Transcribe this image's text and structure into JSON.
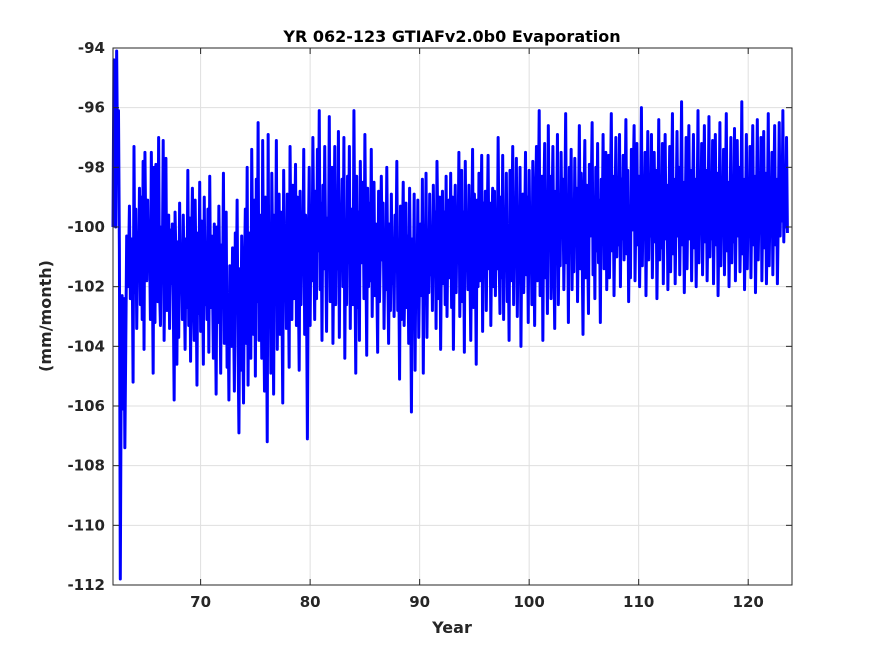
{
  "chart_data": {
    "type": "line",
    "title": "YR 062-123 GTIAFv2.0b0 Evaporation",
    "xlabel": "Year",
    "ylabel": "(mm/month)",
    "xlim": [
      62,
      124
    ],
    "ylim": [
      -112,
      -94
    ],
    "xticks": [
      70,
      80,
      90,
      100,
      110,
      120
    ],
    "yticks": [
      -112,
      -110,
      -108,
      -106,
      -104,
      -102,
      -100,
      -98,
      -96,
      -94
    ],
    "grid": true,
    "legend": "none",
    "series": [
      {
        "color": "#0000ff",
        "x_start": 62.0,
        "x_step": 0.083333,
        "values": [
          -100.0,
          -94.4,
          -95.3,
          -100.0,
          -94.1,
          -97.8,
          -96.1,
          -100.7,
          -111.8,
          -104.8,
          -102.3,
          -106.1,
          -102.4,
          -107.4,
          -103.9,
          -100.3,
          -102.0,
          -101.3,
          -99.3,
          -102.4,
          -100.4,
          -101.0,
          -105.2,
          -97.3,
          -102.2,
          -99.4,
          -103.4,
          -100.4,
          -101.6,
          -98.7,
          -102.6,
          -99.0,
          -103.1,
          -97.8,
          -104.1,
          -97.5,
          -100.5,
          -101.8,
          -99.1,
          -101.3,
          -100.5,
          -103.1,
          -97.5,
          -101.1,
          -104.9,
          -98.0,
          -103.2,
          -97.9,
          -100.1,
          -102.5,
          -97.0,
          -102.1,
          -103.3,
          -100.0,
          -101.7,
          -97.1,
          -103.8,
          -100.9,
          -97.7,
          -102.8,
          -101.2,
          -99.6,
          -103.4,
          -100.1,
          -101.9,
          -99.9,
          -102.3,
          -105.8,
          -99.5,
          -101.1,
          -104.6,
          -100.5,
          -103.7,
          -99.2,
          -102.2,
          -100.8,
          -103.1,
          -99.6,
          -101.8,
          -104.1,
          -100.4,
          -102.7,
          -98.1,
          -103.3,
          -99.7,
          -104.5,
          -100.8,
          -98.7,
          -102.0,
          -103.8,
          -99.1,
          -101.6,
          -105.3,
          -100.2,
          -102.9,
          -98.5,
          -103.5,
          -99.8,
          -101.4,
          -104.6,
          -99.0,
          -102.6,
          -100.7,
          -103.1,
          -99.4,
          -104.2,
          -98.3,
          -102.7,
          -100.3,
          -101.9,
          -104.4,
          -99.9,
          -102.1,
          -105.6,
          -100.0,
          -103.2,
          -99.3,
          -101.7,
          -104.9,
          -100.6,
          -102.5,
          -98.2,
          -103.9,
          -101.1,
          -99.5,
          -104.7,
          -102.4,
          -105.8,
          -101.3,
          -103.7,
          -104.0,
          -100.7,
          -102.6,
          -105.5,
          -100.2,
          -102.8,
          -99.1,
          -104.0,
          -106.9,
          -101.4,
          -104.8,
          -100.3,
          -103.1,
          -105.9,
          -101.6,
          -99.4,
          -103.9,
          -98.0,
          -105.3,
          -100.2,
          -102.2,
          -104.4,
          -97.4,
          -100.9,
          -103.6,
          -99.1,
          -105.0,
          -98.4,
          -102.5,
          -96.5,
          -103.8,
          -99.6,
          -100.9,
          -104.4,
          -97.1,
          -102.0,
          -105.5,
          -99.0,
          -101.5,
          -107.2,
          -96.9,
          -103.2,
          -100.4,
          -104.9,
          -98.2,
          -101.1,
          -105.6,
          -99.6,
          -102.1,
          -97.1,
          -104.1,
          -100.3,
          -98.9,
          -103.6,
          -99.5,
          -102.1,
          -105.9,
          -98.1,
          -101.7,
          -100.1,
          -103.4,
          -98.9,
          -101.3,
          -104.7,
          -97.3,
          -100.7,
          -103.1,
          -98.6,
          -102.4,
          -100.3,
          -97.9,
          -103.3,
          -99.0,
          -101.6,
          -104.8,
          -98.8,
          -102.6,
          -100.1,
          -101.4,
          -97.4,
          -103.6,
          -99.6,
          -102.0,
          -107.1,
          -100.6,
          -98.0,
          -103.3,
          -99.7,
          -101.8,
          -97.0,
          -100.3,
          -103.1,
          -98.8,
          -102.4,
          -97.4,
          -100.8,
          -96.1,
          -102.1,
          -99.2,
          -103.8,
          -98.6,
          -101.4,
          -97.3,
          -100.6,
          -103.5,
          -99.7,
          -101.1,
          -96.3,
          -102.5,
          -99.2,
          -98.0,
          -103.9,
          -100.4,
          -97.3,
          -102.6,
          -99.1,
          -101.4,
          -96.8,
          -103.7,
          -99.8,
          -100.6,
          -98.4,
          -102.0,
          -97.0,
          -104.4,
          -99.9,
          -102.6,
          -98.3,
          -101.2,
          -97.3,
          -103.4,
          -99.4,
          -100.9,
          -102.6,
          -96.1,
          -101.0,
          -104.9,
          -98.3,
          -102.7,
          -99.5,
          -103.8,
          -97.8,
          -101.2,
          -100.3,
          -98.5,
          -102.4,
          -96.9,
          -100.6,
          -104.3,
          -98.7,
          -102.0,
          -99.2,
          -101.8,
          -97.4,
          -103.0,
          -100.1,
          -98.5,
          -102.3,
          -99.9,
          -101.6,
          -104.2,
          -98.8,
          -102.5,
          -100.6,
          -98.3,
          -101.1,
          -99.2,
          -103.4,
          -100.6,
          -102.1,
          -98.0,
          -101.3,
          -103.9,
          -99.9,
          -102.8,
          -98.9,
          -101.9,
          -100.5,
          -103.0,
          -99.6,
          -101.2,
          -97.8,
          -102.8,
          -101.0,
          -105.1,
          -99.3,
          -103.1,
          -100.9,
          -98.5,
          -103.3,
          -101.4,
          -99.2,
          -102.7,
          -100.3,
          -103.9,
          -98.7,
          -101.6,
          -106.2,
          -100.4,
          -102.8,
          -98.9,
          -104.8,
          -100.6,
          -102.5,
          -99.1,
          -103.7,
          -101.3,
          -99.9,
          -102.3,
          -98.4,
          -104.9,
          -100.3,
          -101.8,
          -98.2,
          -103.7,
          -100.1,
          -102.2,
          -98.9,
          -101.6,
          -100.0,
          -102.8,
          -98.6,
          -101.5,
          -99.5,
          -103.4,
          -97.8,
          -100.2,
          -102.4,
          -99.0,
          -104.1,
          -100.4,
          -98.8,
          -101.9,
          -99.5,
          -102.6,
          -98.3,
          -103.0,
          -100.2,
          -99.1,
          -101.7,
          -98.2,
          -102.7,
          -99.0,
          -104.1,
          -100.8,
          -98.6,
          -102.2,
          -99.6,
          -101.0,
          -97.5,
          -103.0,
          -100.4,
          -98.1,
          -102.5,
          -99.5,
          -104.2,
          -97.8,
          -101.4,
          -99.9,
          -102.1,
          -98.6,
          -101.2,
          -103.8,
          -100.5,
          -97.4,
          -102.7,
          -98.9,
          -100.7,
          -104.6,
          -99.1,
          -102.0,
          -98.2,
          -101.8,
          -100.1,
          -97.6,
          -103.5,
          -99.2,
          -101.2,
          -98.8,
          -102.8,
          -100.0,
          -97.6,
          -101.4,
          -99.2,
          -103.3,
          -100.4,
          -98.7,
          -102.0,
          -98.8,
          -102.3,
          -99.8,
          -101.4,
          -97.0,
          -100.8,
          -102.9,
          -99.0,
          -101.7,
          -97.6,
          -103.1,
          -99.7,
          -101.2,
          -98.2,
          -102.5,
          -100.3,
          -103.8,
          -98.1,
          -101.8,
          -100.0,
          -97.3,
          -102.6,
          -99.5,
          -101.0,
          -97.7,
          -103.0,
          -99.8,
          -101.2,
          -98.0,
          -104.0,
          -100.1,
          -98.9,
          -102.2,
          -100.4,
          -97.5,
          -101.6,
          -99.0,
          -103.2,
          -98.1,
          -101.0,
          -99.9,
          -102.6,
          -97.8,
          -100.4,
          -103.3,
          -99.4,
          -97.3,
          -101.8,
          -99.5,
          -96.1,
          -102.3,
          -100.8,
          -98.3,
          -103.8,
          -99.3,
          -97.2,
          -101.7,
          -99.8,
          -102.9,
          -96.6,
          -100.6,
          -98.3,
          -102.4,
          -99.6,
          -97.3,
          -101.0,
          -103.4,
          -98.8,
          -100.6,
          -96.9,
          -102.6,
          -99.2,
          -101.3,
          -97.5,
          -100.3,
          -98.4,
          -102.1,
          -99.6,
          -96.2,
          -101.2,
          -99.0,
          -103.2,
          -98.0,
          -100.8,
          -97.4,
          -102.1,
          -99.3,
          -101.5,
          -97.7,
          -100.2,
          -98.7,
          -102.5,
          -99.7,
          -96.6,
          -101.4,
          -98.2,
          -100.7,
          -103.6,
          -99.3,
          -97.1,
          -101.7,
          -98.6,
          -100.5,
          -102.9,
          -97.9,
          -100.3,
          -98.8,
          -96.5,
          -101.6,
          -99.0,
          -102.4,
          -98.0,
          -100.8,
          -97.2,
          -101.2,
          -99.1,
          -103.2,
          -98.4,
          -100.3,
          -96.9,
          -101.4,
          -99.3,
          -97.5,
          -102.1,
          -100.0,
          -97.6,
          -101.7,
          -99.0,
          -96.2,
          -100.8,
          -98.3,
          -102.3,
          -99.6,
          -97.0,
          -101.0,
          -98.6,
          -100.6,
          -96.9,
          -102.0,
          -98.4,
          -100.4,
          -97.6,
          -101.1,
          -99.2,
          -96.4,
          -100.9,
          -98.1,
          -102.5,
          -99.3,
          -101.7,
          -97.4,
          -100.1,
          -98.4,
          -96.6,
          -101.8,
          -99.5,
          -97.2,
          -100.6,
          -98.3,
          -102.0,
          -99.7,
          -96.0,
          -101.3,
          -98.6,
          -100.2,
          -97.5,
          -102.3,
          -99.4,
          -96.8,
          -101.1,
          -98.7,
          -100.3,
          -96.9,
          -101.7,
          -99.2,
          -97.5,
          -100.5,
          -98.1,
          -102.4,
          -99.9,
          -96.4,
          -101.1,
          -98.3,
          -100.7,
          -97.2,
          -101.9,
          -99.1,
          -96.9,
          -100.4,
          -98.6,
          -102.1,
          -99.8,
          -97.3,
          -101.5,
          -98.9,
          -96.2,
          -100.9,
          -98.4,
          -101.9,
          -99.6,
          -96.8,
          -100.3,
          -98.0,
          -101.6,
          -99.3,
          -95.8,
          -100.6,
          -98.5,
          -102.2,
          -99.7,
          -97.0,
          -101.4,
          -98.8,
          -96.6,
          -100.4,
          -98.1,
          -101.8,
          -99.2,
          -96.9,
          -100.7,
          -98.4,
          -102.0,
          -99.5,
          -96.1,
          -101.2,
          -98.9,
          -100.2,
          -97.2,
          -101.6,
          -99.3,
          -96.6,
          -100.5,
          -98.1,
          -101.8,
          -99.6,
          -96.3,
          -101.0,
          -98.7,
          -100.4,
          -97.1,
          -101.9,
          -99.4,
          -96.9,
          -100.6,
          -98.2,
          -102.3,
          -99.8,
          -96.5,
          -101.3,
          -98.9,
          -100.1,
          -97.4,
          -101.6,
          -99.1,
          -96.2,
          -100.8,
          -98.5,
          -102.0,
          -99.7,
          -97.0,
          -101.2,
          -98.6,
          -100.5,
          -96.7,
          -101.8,
          -99.3,
          -97.1,
          -100.3,
          -98.0,
          -101.5,
          -99.5,
          -95.8,
          -100.9,
          -98.4,
          -102.1,
          -99.8,
          -96.9,
          -101.4,
          -98.8,
          -100.0,
          -97.3,
          -101.7,
          -99.2,
          -96.6,
          -100.6,
          -98.3,
          -102.2,
          -99.6,
          -96.4,
          -101.1,
          -98.8,
          -100.2,
          -97.0,
          -101.8,
          -99.4,
          -96.8,
          -100.7,
          -98.2,
          -101.9,
          -99.7,
          -96.2,
          -101.3,
          -98.9,
          -100.3,
          -97.5,
          -101.6,
          -99.1,
          -96.6,
          -100.6,
          -98.4,
          -101.9,
          -99.6,
          -96.5,
          -100.3,
          -98.0,
          -99.8,
          -96.1,
          -100.5,
          -98.2,
          -100.0,
          -97.0,
          -100.2
        ]
      }
    ]
  }
}
